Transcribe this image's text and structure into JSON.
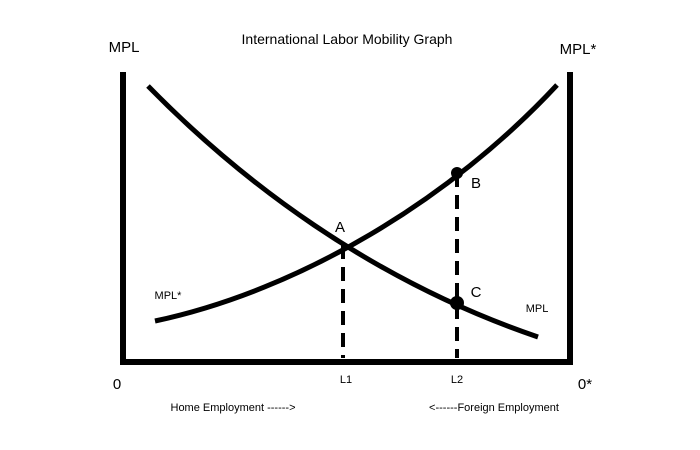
{
  "title": "International Labor Mobility Graph",
  "axes": {
    "left_label": "MPL",
    "right_label": "MPL*",
    "origin_left": "0",
    "origin_right": "0*",
    "home_label": "Home Employment ------>",
    "foreign_label": "<------Foreign Employment"
  },
  "curves": {
    "mpl_label": "MPL",
    "mpl_star_label": "MPL*"
  },
  "points": {
    "a": "A",
    "b": "B",
    "c": "C"
  },
  "ticks": {
    "l1": "L1",
    "l2": "L2"
  },
  "colors": {
    "ink": "#000000",
    "background": "#ffffff"
  }
}
